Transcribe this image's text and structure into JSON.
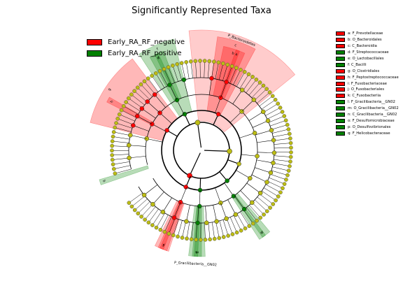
{
  "chart_data": {
    "type": "cladogram",
    "title": "Significantly Represented Taxa",
    "colors": {
      "negative": "#ff0000",
      "positive": "#008000",
      "neutral": "#bcbc14"
    },
    "groups": [
      {
        "label": "Early_RA_RF_negative",
        "color": "#ff0000"
      },
      {
        "label": "Early_RA_RF_positive",
        "color": "#008000"
      }
    ],
    "taxa_key": [
      {
        "label": "a: F_Prevotellaceae",
        "group": "negative"
      },
      {
        "label": "b: O_Bacteroidales",
        "group": "negative"
      },
      {
        "label": "c: C_Bacteroidia",
        "group": "negative"
      },
      {
        "label": "d: F_Streptococcaceae",
        "group": "positive"
      },
      {
        "label": "e: O_Lactobacillales",
        "group": "positive"
      },
      {
        "label": "f: C_Bacilli",
        "group": "positive"
      },
      {
        "label": "g: O_Clostridiales",
        "group": "negative"
      },
      {
        "label": "h: F_Peptostreptococcaceae",
        "group": "negative"
      },
      {
        "label": "i: F_Fusobacteriaceae",
        "group": "negative"
      },
      {
        "label": "j: O_Fusobacteriales",
        "group": "negative"
      },
      {
        "label": "k: C_Fusobacteriia",
        "group": "negative"
      },
      {
        "label": "l: F_Gracilibacteria__GN02",
        "group": "positive"
      },
      {
        "label": "m: O_Gracilibacteria__GN02",
        "group": "positive"
      },
      {
        "label": "n: C_Gracilibacteria__GN02",
        "group": "positive"
      },
      {
        "label": "o: F_Desulfomicrobiaceae",
        "group": "positive"
      },
      {
        "label": "p: O_Desulfovibrionales",
        "group": "positive"
      },
      {
        "label": "q: F_Helicobacteraceae",
        "group": "positive"
      }
    ],
    "clade_labels": [
      {
        "text": "P_Bacteroidetes",
        "group": "negative"
      },
      {
        "text": "P_Gracilibacteria__GN02",
        "group": "positive"
      }
    ],
    "highlighted_sectors": [
      {
        "letter": "a",
        "group": "negative",
        "start_deg": 19,
        "end_deg": 21
      },
      {
        "letter": "b",
        "group": "negative",
        "start_deg": 12,
        "end_deg": 24
      },
      {
        "letter": "c",
        "group": "negative",
        "start_deg": 8,
        "end_deg": 28
      },
      {
        "letter": "",
        "group": "negative",
        "start_deg": -6,
        "end_deg": 51
      },
      {
        "letter": "d",
        "group": "positive",
        "start_deg": -26,
        "end_deg": -24
      },
      {
        "letter": "e",
        "group": "positive",
        "start_deg": -29,
        "end_deg": -21
      },
      {
        "letter": "f",
        "group": "positive",
        "start_deg": -33,
        "end_deg": -14
      },
      {
        "letter": "g",
        "group": "negative",
        "start_deg": -76,
        "end_deg": -37
      },
      {
        "letter": "h",
        "group": "negative",
        "start_deg": -63,
        "end_deg": -60
      },
      {
        "letter": "i",
        "group": "negative",
        "start_deg": 201,
        "end_deg": 203
      },
      {
        "letter": "j",
        "group": "negative",
        "start_deg": 199,
        "end_deg": 204
      },
      {
        "letter": "k",
        "group": "negative",
        "start_deg": 198,
        "end_deg": 206
      },
      {
        "letter": "l",
        "group": "positive",
        "start_deg": 182,
        "end_deg": 184
      },
      {
        "letter": "m",
        "group": "positive",
        "start_deg": 180,
        "end_deg": 185
      },
      {
        "letter": "n",
        "group": "positive",
        "start_deg": 178,
        "end_deg": 187
      },
      {
        "letter": "o",
        "group": "positive",
        "start_deg": 143,
        "end_deg": 145
      },
      {
        "letter": "p",
        "group": "positive",
        "start_deg": 140,
        "end_deg": 147
      },
      {
        "letter": "q",
        "group": "positive",
        "start_deg": -109,
        "end_deg": -106
      }
    ],
    "node_levels": [
      {
        "level": 1,
        "positions_deg": [
          -8,
          92,
          205
        ]
      },
      {
        "level": 2,
        "positions_deg": [
          -60,
          -25,
          25,
          110,
          140,
          182,
          203
        ]
      },
      {
        "level": 3,
        "positions_deg": [
          -78,
          -62,
          -48,
          -26,
          20,
          46,
          72,
          96,
          120,
          145,
          160,
          182,
          202
        ]
      },
      {
        "level": 4,
        "positions_deg": [
          -96,
          -86,
          -78,
          -70,
          -62,
          -55,
          -48,
          -40,
          -26,
          -14,
          8,
          20,
          34,
          46,
          58,
          66,
          74,
          82,
          92,
          100,
          108,
          116,
          126,
          136,
          144,
          152,
          160,
          168,
          176,
          183,
          192,
          202,
          212,
          222,
          232
        ]
      },
      {
        "level": 5,
        "n_leaves": 116
      }
    ]
  }
}
